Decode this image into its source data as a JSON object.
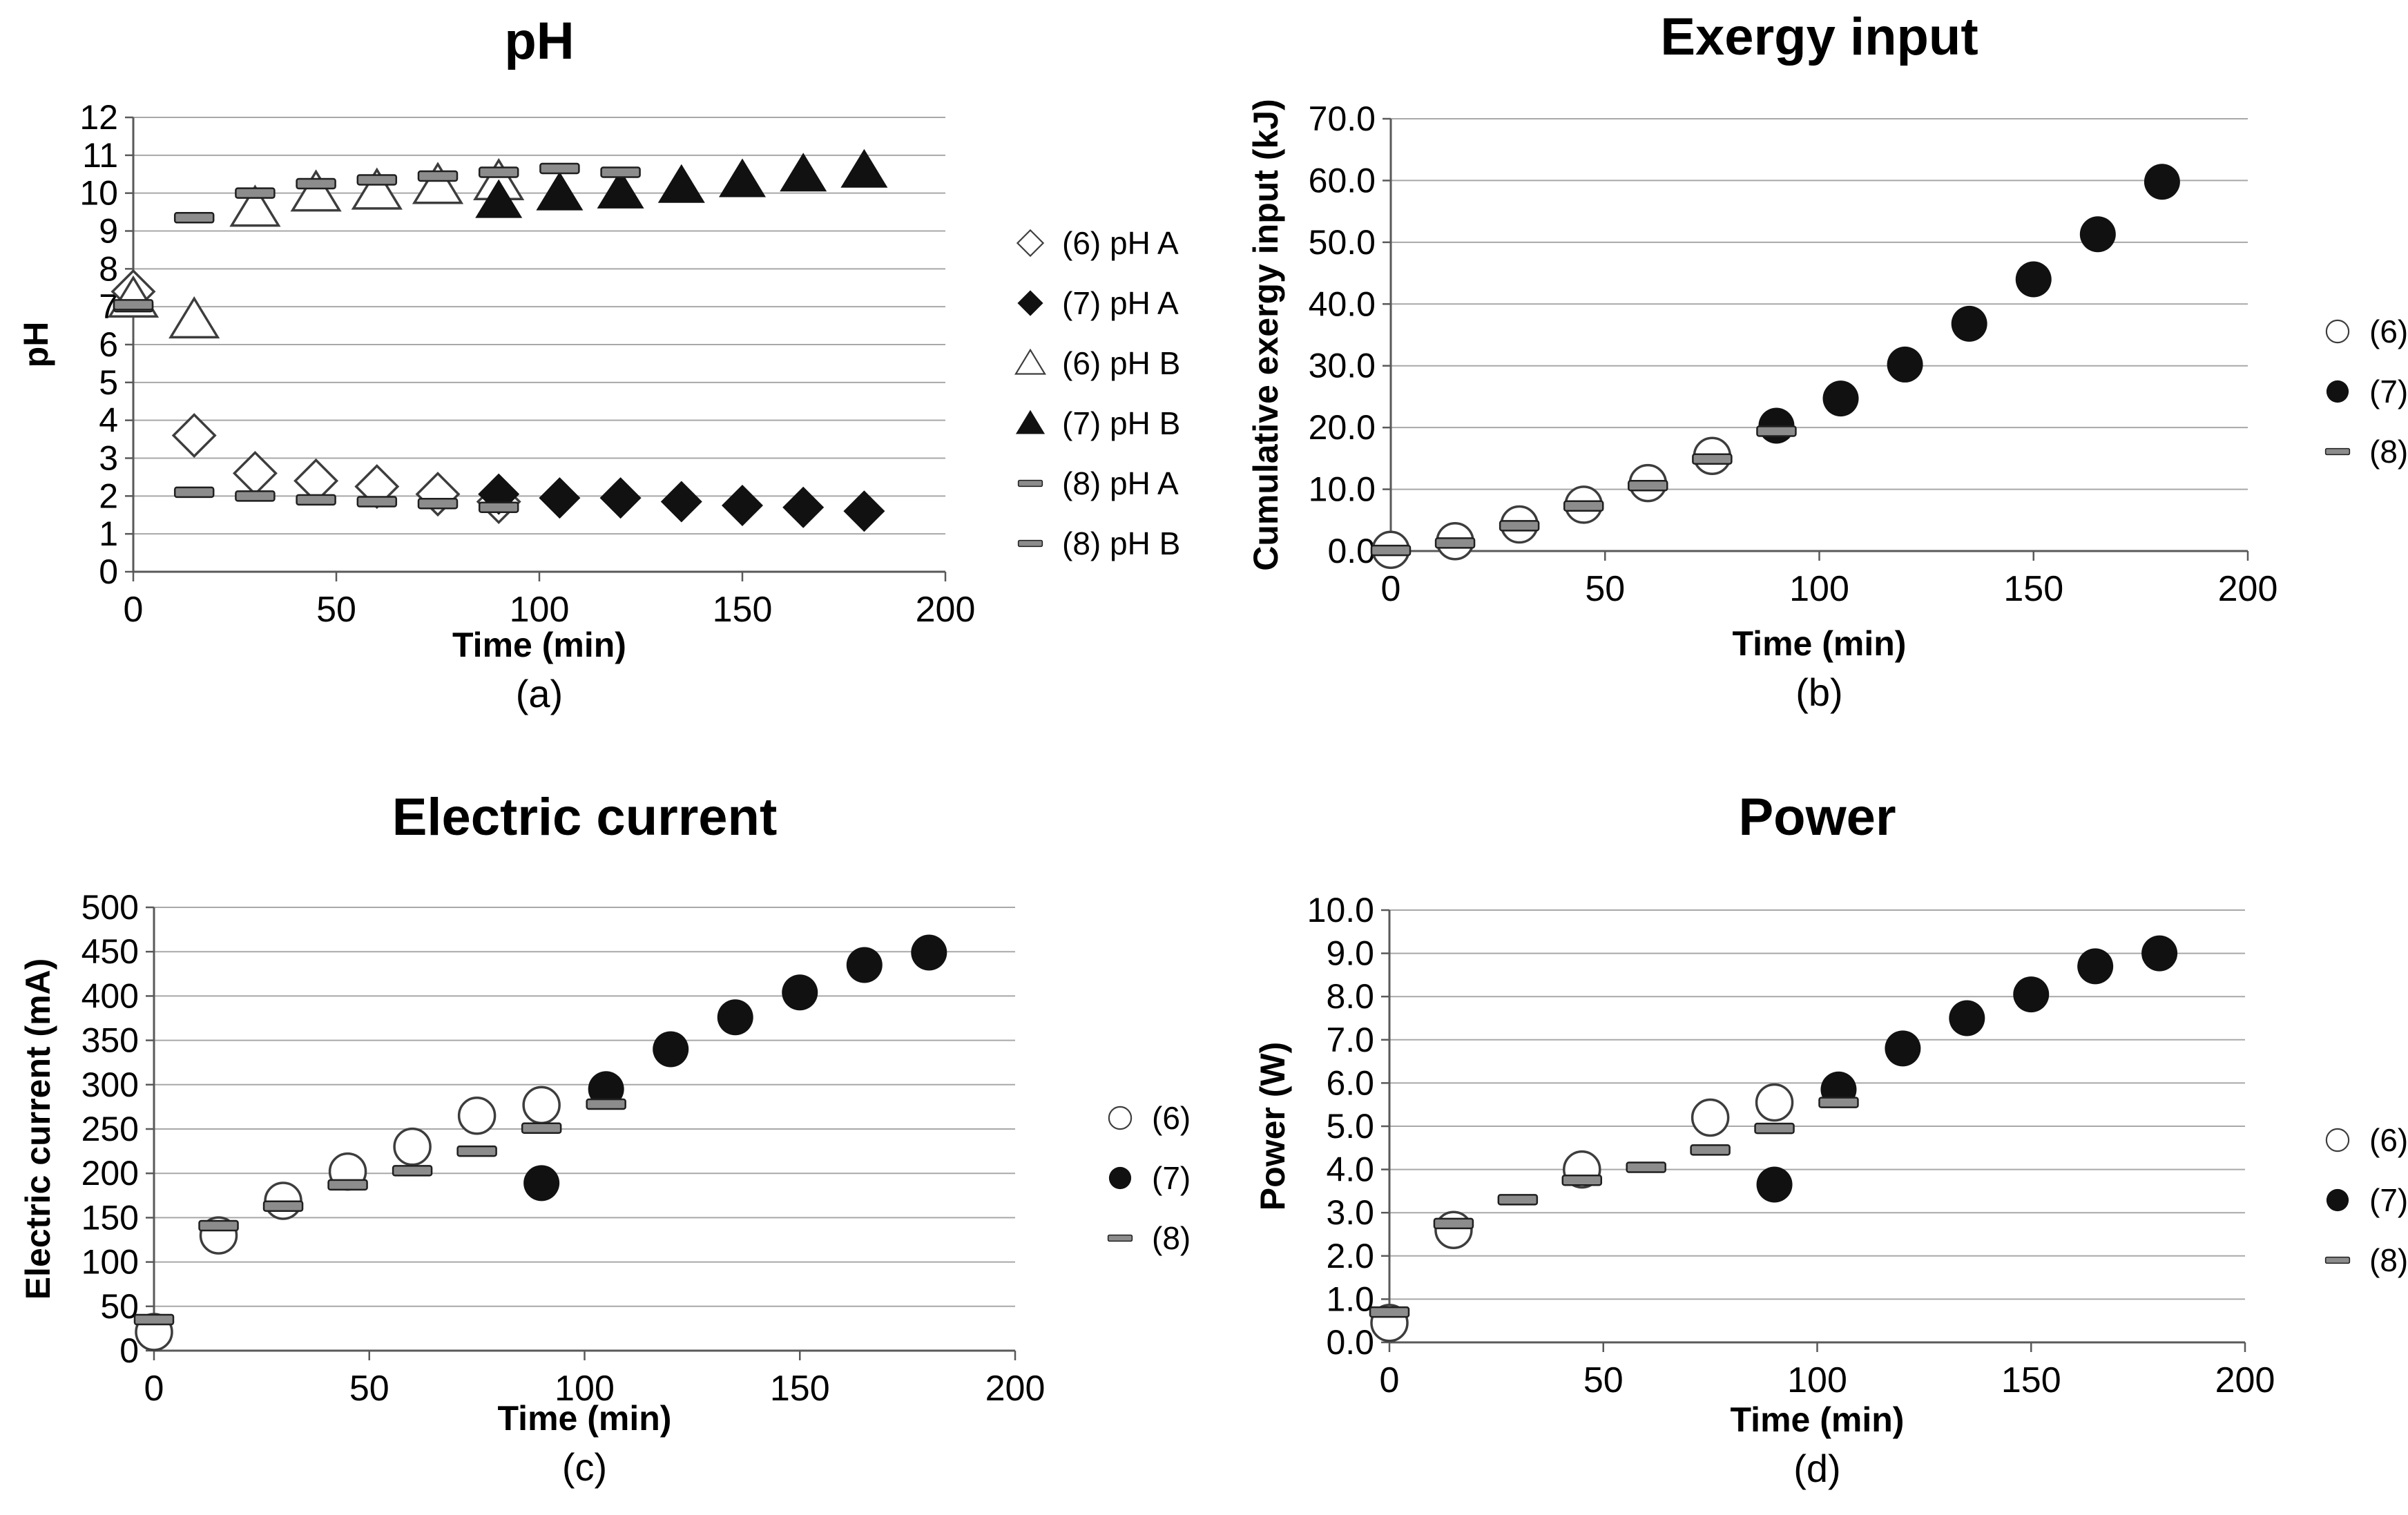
{
  "colors": {
    "marker_fill": "#111111",
    "marker_stroke": "#3d3d3d",
    "dash_fill": "#8c8c8c",
    "dash_stroke": "#1f1f1f",
    "grid": "#a8a8a8",
    "axis": "#595959",
    "text": "#000000",
    "background": "#ffffff"
  },
  "chart_data": [
    {
      "id": "a",
      "type": "scatter",
      "title": "pH",
      "ylabel": "pH",
      "xlabel": "Time (min)",
      "caption": "(a)",
      "xlim": [
        0,
        200
      ],
      "x_ticks": [
        0,
        50,
        100,
        150,
        200
      ],
      "ylim": [
        0,
        12
      ],
      "y_tick_step": 1,
      "y_decimals": 0,
      "grid": "horizontal",
      "legend_position": "right",
      "series": [
        {
          "name": "(6) pH A",
          "marker": "diamond-open",
          "points": [
            [
              0,
              7.4
            ],
            [
              15,
              3.6
            ],
            [
              30,
              2.6
            ],
            [
              45,
              2.4
            ],
            [
              60,
              2.25
            ],
            [
              75,
              2.05
            ],
            [
              90,
              1.85
            ]
          ]
        },
        {
          "name": "(7) pH A",
          "marker": "diamond-filled",
          "points": [
            [
              90,
              2.05
            ],
            [
              105,
              1.95
            ],
            [
              120,
              1.95
            ],
            [
              135,
              1.85
            ],
            [
              150,
              1.75
            ],
            [
              165,
              1.7
            ],
            [
              180,
              1.6
            ]
          ]
        },
        {
          "name": "(6) pH B",
          "marker": "triangle-open",
          "points": [
            [
              0,
              7.2
            ],
            [
              15,
              6.65
            ],
            [
              30,
              9.6
            ],
            [
              45,
              10.0
            ],
            [
              60,
              10.05
            ],
            [
              75,
              10.2
            ],
            [
              90,
              10.3
            ]
          ]
        },
        {
          "name": "(7) pH B",
          "marker": "triangle-filled",
          "points": [
            [
              90,
              9.8
            ],
            [
              105,
              10.0
            ],
            [
              120,
              10.05
            ],
            [
              135,
              10.2
            ],
            [
              150,
              10.35
            ],
            [
              165,
              10.5
            ],
            [
              180,
              10.6
            ]
          ]
        },
        {
          "name": "(8) pH A",
          "marker": "dash",
          "points": [
            [
              0,
              7.0
            ],
            [
              15,
              2.1
            ],
            [
              30,
              2.0
            ],
            [
              45,
              1.9
            ],
            [
              60,
              1.85
            ],
            [
              75,
              1.8
            ],
            [
              90,
              1.7
            ]
          ]
        },
        {
          "name": "(8) pH B",
          "marker": "dash",
          "points": [
            [
              0,
              7.05
            ],
            [
              15,
              9.35
            ],
            [
              30,
              10.0
            ],
            [
              45,
              10.25
            ],
            [
              60,
              10.35
            ],
            [
              75,
              10.45
            ],
            [
              90,
              10.55
            ],
            [
              105,
              10.65
            ],
            [
              120,
              10.55
            ]
          ]
        }
      ]
    },
    {
      "id": "b",
      "type": "scatter",
      "title": "Exergy input",
      "ylabel": "Cumulative exergy input (kJ)",
      "xlabel": "Time (min)",
      "caption": "(b)",
      "xlim": [
        0,
        200
      ],
      "x_ticks": [
        0,
        50,
        100,
        150,
        200
      ],
      "ylim": [
        0,
        70
      ],
      "y_tick_step": 10,
      "y_decimals": 1,
      "grid": "horizontal",
      "legend_position": "right",
      "series": [
        {
          "name": "(6)",
          "marker": "circle-open",
          "points": [
            [
              0,
              0.2
            ],
            [
              15,
              1.6
            ],
            [
              30,
              4.3
            ],
            [
              45,
              7.5
            ],
            [
              60,
              11.0
            ],
            [
              75,
              15.4
            ]
          ]
        },
        {
          "name": "(7)",
          "marker": "circle-filled",
          "points": [
            [
              90,
              20.3
            ],
            [
              105,
              24.7
            ],
            [
              120,
              30.2
            ],
            [
              135,
              36.8
            ],
            [
              150,
              44.0
            ],
            [
              165,
              51.3
            ],
            [
              180,
              59.8
            ]
          ]
        },
        {
          "name": "(8)",
          "marker": "dash",
          "points": [
            [
              0,
              0.1
            ],
            [
              15,
              1.3
            ],
            [
              30,
              4.1
            ],
            [
              45,
              7.3
            ],
            [
              60,
              10.6
            ],
            [
              75,
              14.9
            ],
            [
              90,
              19.4
            ]
          ]
        }
      ]
    },
    {
      "id": "c",
      "type": "scatter",
      "title": "Electric current",
      "ylabel": "Electric current (mA)",
      "xlabel": "Time (min)",
      "caption": "(c)",
      "xlim": [
        0,
        200
      ],
      "x_ticks": [
        0,
        50,
        100,
        150,
        200
      ],
      "ylim": [
        0,
        500
      ],
      "y_tick_step": 50,
      "y_decimals": 0,
      "grid": "horizontal",
      "legend_position": "right",
      "series": [
        {
          "name": "(6)",
          "marker": "circle-open",
          "points": [
            [
              0,
              21
            ],
            [
              15,
              130
            ],
            [
              30,
              169
            ],
            [
              45,
              202
            ],
            [
              60,
              230
            ],
            [
              75,
              265
            ],
            [
              90,
              277
            ]
          ]
        },
        {
          "name": "(7)",
          "marker": "circle-filled",
          "points": [
            [
              90,
              189
            ],
            [
              105,
              295
            ],
            [
              120,
              340
            ],
            [
              135,
              376
            ],
            [
              150,
              404
            ],
            [
              165,
              435
            ],
            [
              180,
              449
            ]
          ]
        },
        {
          "name": "(8)",
          "marker": "dash",
          "points": [
            [
              0,
              35
            ],
            [
              15,
              141
            ],
            [
              30,
              163
            ],
            [
              45,
              187
            ],
            [
              60,
              203
            ],
            [
              75,
              225
            ],
            [
              90,
              251
            ],
            [
              105,
              278
            ]
          ]
        }
      ]
    },
    {
      "id": "d",
      "type": "scatter",
      "title": "Power",
      "ylabel": "Power (W)",
      "xlabel": "Time (min)",
      "caption": "(d)",
      "xlim": [
        0,
        200
      ],
      "x_ticks": [
        0,
        50,
        100,
        150,
        200
      ],
      "ylim": [
        0,
        10
      ],
      "y_tick_step": 1,
      "y_decimals": 1,
      "grid": "horizontal",
      "legend_position": "right",
      "series": [
        {
          "name": "(6)",
          "marker": "circle-open",
          "points": [
            [
              0,
              0.45
            ],
            [
              15,
              2.6
            ],
            [
              45,
              4.0
            ],
            [
              75,
              5.2
            ],
            [
              90,
              5.55
            ]
          ]
        },
        {
          "name": "(7)",
          "marker": "circle-filled",
          "points": [
            [
              90,
              3.65
            ],
            [
              105,
              5.85
            ],
            [
              120,
              6.8
            ],
            [
              135,
              7.5
            ],
            [
              150,
              8.05
            ],
            [
              165,
              8.7
            ],
            [
              180,
              9.0
            ]
          ]
        },
        {
          "name": "(8)",
          "marker": "dash",
          "points": [
            [
              0,
              0.7
            ],
            [
              15,
              2.75
            ],
            [
              30,
              3.3
            ],
            [
              45,
              3.75
            ],
            [
              60,
              4.05
            ],
            [
              75,
              4.45
            ],
            [
              90,
              4.95
            ],
            [
              105,
              5.55
            ]
          ]
        }
      ]
    }
  ]
}
